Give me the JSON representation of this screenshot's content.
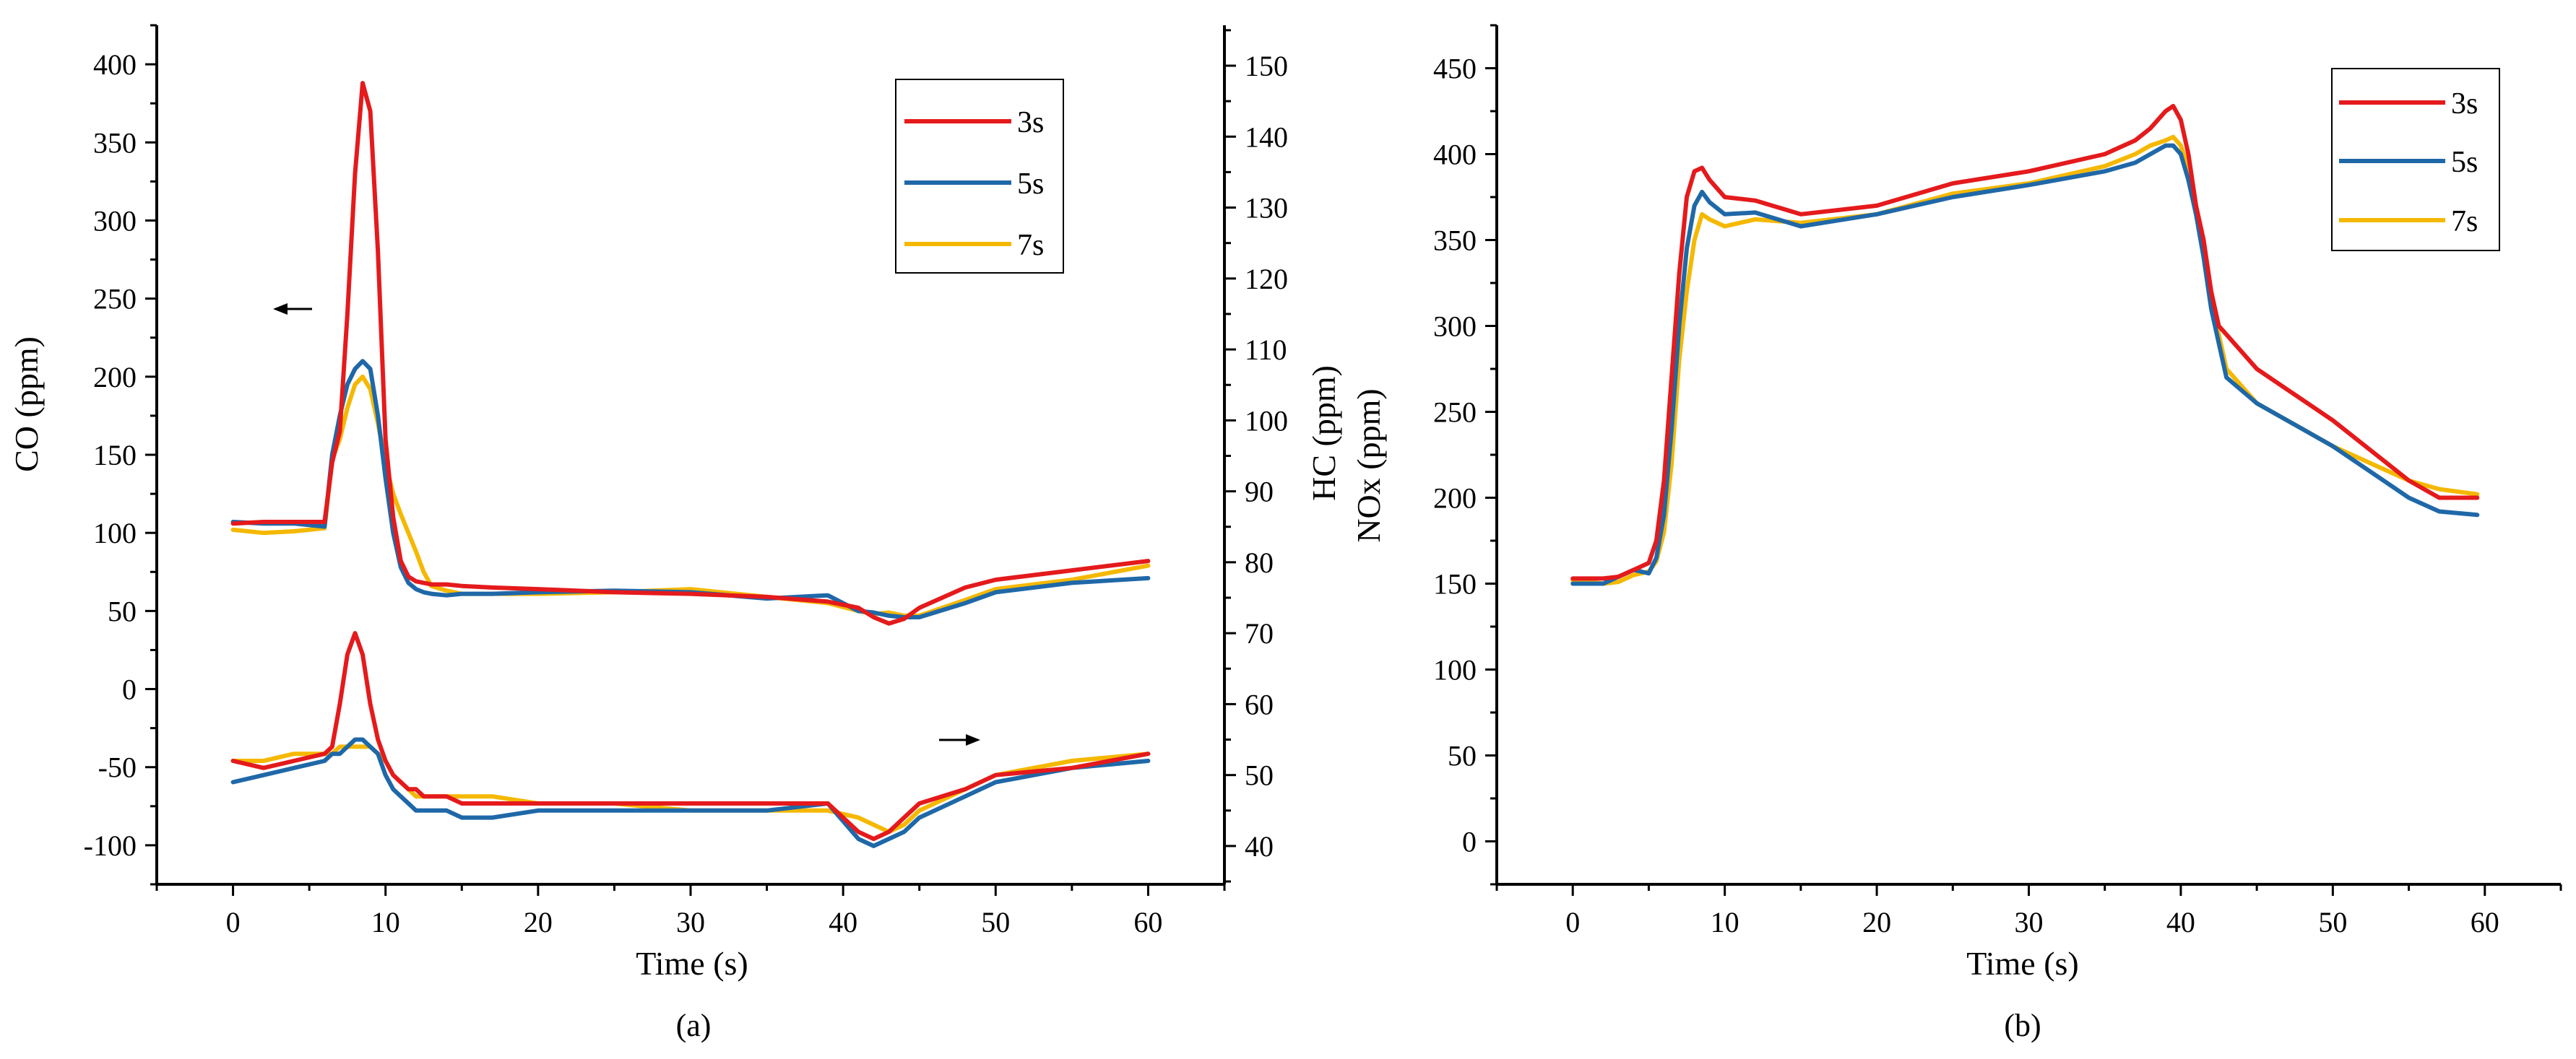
{
  "panels": [
    {
      "id": "a",
      "caption": "(a)",
      "xlabel": "Time (s)",
      "ylabel_left": "CO (ppm)",
      "ylabel_right": "HC (ppm)",
      "xticks": [
        "0",
        "10",
        "20",
        "30",
        "40",
        "50",
        "60"
      ],
      "yticks_left": [
        "400",
        "350",
        "300",
        "250",
        "200",
        "150",
        "100",
        "50",
        "0",
        "-50",
        "-100"
      ],
      "yticks_right": [
        "150",
        "140",
        "130",
        "120",
        "110",
        "100",
        "90",
        "80",
        "70",
        "60",
        "50",
        "40"
      ],
      "legend": [
        "3s",
        "5s",
        "7s"
      ]
    },
    {
      "id": "b",
      "caption": "(b)",
      "xlabel": "Time (s)",
      "ylabel": "NOx (ppm)",
      "xticks": [
        "0",
        "10",
        "20",
        "30",
        "40",
        "50",
        "60"
      ],
      "yticks": [
        "450",
        "400",
        "350",
        "300",
        "250",
        "200",
        "150",
        "100",
        "50",
        "0"
      ],
      "legend": [
        "3s",
        "5s",
        "7s"
      ]
    }
  ],
  "chart_data": [
    {
      "type": "line",
      "panel": "a",
      "title": "",
      "xlabel": "Time (s)",
      "ylabel": "CO (ppm)",
      "y2label": "HC (ppm)",
      "xlim": [
        -5,
        65
      ],
      "ylim": [
        -125,
        425
      ],
      "y2lim": [
        34.6,
        155.7
      ],
      "x": [
        0,
        2,
        4,
        6,
        6.5,
        7,
        7.5,
        8,
        8.5,
        9,
        9.5,
        10,
        10.5,
        11,
        11.5,
        12,
        12.5,
        13,
        14,
        15,
        17,
        20,
        25,
        30,
        35,
        39,
        41,
        42,
        43,
        44,
        45,
        48,
        50,
        55,
        60
      ],
      "series": [
        {
          "name": "3s",
          "group": "CO",
          "axis": "left",
          "color": "#e41a1c",
          "values": [
            106,
            107,
            107,
            107,
            145,
            165,
            240,
            330,
            388,
            370,
            280,
            160,
            110,
            82,
            72,
            69,
            68,
            67,
            67,
            66,
            65,
            64,
            62,
            61,
            59,
            56,
            52,
            46,
            42,
            45,
            52,
            65,
            70,
            76,
            82
          ]
        },
        {
          "name": "5s",
          "group": "CO",
          "axis": "left",
          "color": "#1f68a8",
          "values": [
            107,
            106,
            106,
            104,
            150,
            175,
            195,
            205,
            210,
            205,
            175,
            135,
            100,
            78,
            68,
            64,
            62,
            61,
            60,
            61,
            61,
            62,
            63,
            62,
            58,
            60,
            50,
            49,
            47,
            46,
            46,
            55,
            62,
            68,
            71
          ]
        },
        {
          "name": "7s",
          "group": "CO",
          "axis": "left",
          "color": "#f5b800",
          "values": [
            102,
            100,
            101,
            103,
            147,
            160,
            180,
            195,
            200,
            192,
            170,
            145,
            125,
            112,
            100,
            88,
            75,
            66,
            63,
            61,
            61,
            61,
            62,
            64,
            59,
            55,
            50,
            48,
            49,
            47,
            47,
            57,
            64,
            70,
            79
          ]
        },
        {
          "name": "3s",
          "group": "HC",
          "axis": "right",
          "color": "#e41a1c",
          "values": [
            52,
            51,
            52,
            53,
            54,
            60,
            67,
            70,
            67,
            60,
            55,
            52,
            50,
            49,
            48,
            48,
            47,
            47,
            47,
            46,
            46,
            46,
            46,
            46,
            46,
            46,
            42,
            41,
            42,
            44,
            46,
            48,
            50,
            51,
            53
          ]
        },
        {
          "name": "5s",
          "group": "HC",
          "axis": "right",
          "color": "#1f68a8",
          "values": [
            49,
            50,
            51,
            52,
            53,
            53,
            54,
            55,
            55,
            54,
            53,
            50,
            48,
            47,
            46,
            45,
            45,
            45,
            45,
            44,
            44,
            45,
            45,
            45,
            45,
            46,
            41,
            40,
            41,
            42,
            44,
            47,
            49,
            51,
            52
          ]
        },
        {
          "name": "7s",
          "group": "HC",
          "axis": "right",
          "color": "#f5b800",
          "values": [
            52,
            52,
            53,
            53,
            53,
            54,
            54,
            54,
            54,
            54,
            53,
            52,
            50,
            49,
            48,
            47,
            47,
            47,
            47,
            47,
            47,
            46,
            46,
            45,
            45,
            45,
            44,
            43,
            42,
            43,
            45,
            48,
            50,
            52,
            53
          ]
        }
      ]
    },
    {
      "type": "line",
      "panel": "b",
      "title": "",
      "xlabel": "Time (s)",
      "ylabel": "NOx (ppm)",
      "xlim": [
        -5,
        65
      ],
      "ylim": [
        -25,
        475
      ],
      "x": [
        0,
        2,
        3,
        4,
        5,
        5.5,
        6,
        6.5,
        7,
        7.5,
        8,
        8.5,
        9,
        10,
        12,
        15,
        20,
        25,
        30,
        35,
        37,
        38,
        39,
        39.5,
        40,
        40.5,
        41,
        41.5,
        42,
        42.5,
        43,
        45,
        50,
        55,
        57,
        59.5
      ],
      "series": [
        {
          "name": "3s",
          "color": "#e41a1c",
          "values": [
            153,
            153,
            154,
            158,
            162,
            175,
            210,
            270,
            330,
            375,
            390,
            392,
            385,
            375,
            373,
            365,
            370,
            383,
            390,
            400,
            408,
            415,
            425,
            428,
            420,
            400,
            370,
            350,
            320,
            300,
            295,
            275,
            245,
            210,
            200,
            200
          ]
        },
        {
          "name": "5s",
          "color": "#1f68a8",
          "values": [
            150,
            150,
            154,
            158,
            156,
            165,
            190,
            240,
            300,
            345,
            370,
            378,
            372,
            365,
            366,
            358,
            365,
            375,
            382,
            390,
            395,
            400,
            405,
            405,
            400,
            385,
            365,
            340,
            310,
            290,
            270,
            255,
            230,
            200,
            192,
            190
          ]
        },
        {
          "name": "7s",
          "color": "#f5b800",
          "values": [
            152,
            150,
            151,
            155,
            157,
            163,
            180,
            220,
            280,
            320,
            350,
            365,
            362,
            358,
            362,
            360,
            365,
            377,
            383,
            393,
            400,
            405,
            408,
            410,
            405,
            392,
            370,
            345,
            320,
            295,
            275,
            255,
            230,
            210,
            205,
            202
          ]
        }
      ]
    }
  ]
}
